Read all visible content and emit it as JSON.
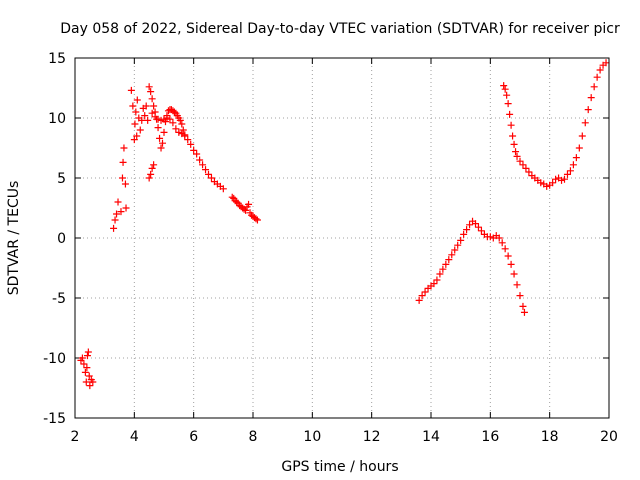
{
  "chart_data": {
    "type": "scatter",
    "title": "Day 058 of 2022, Sidereal Day-to-day VTEC variation (SDTVAR) for receiver picr",
    "xlabel": "GPS time / hours",
    "ylabel": "SDTVAR / TECUs",
    "xlim": [
      2,
      20
    ],
    "ylim": [
      -15,
      15
    ],
    "xticks": [
      2,
      4,
      6,
      8,
      10,
      12,
      14,
      16,
      18,
      20
    ],
    "yticks": [
      -15,
      -10,
      -5,
      0,
      5,
      10,
      15
    ],
    "xtick_labels": [
      "2",
      "4",
      "6",
      "8",
      "10",
      "12",
      "14",
      "16",
      "18",
      "20"
    ],
    "ytick_labels": [
      "-15",
      "-10",
      "-5",
      "0",
      "5",
      "10",
      "15"
    ],
    "grid": true,
    "marker": "+",
    "color": "#ff0000",
    "series": [
      {
        "name": "SDTVAR",
        "points": [
          [
            2.2,
            -10.2
          ],
          [
            2.25,
            -10.0
          ],
          [
            2.3,
            -10.5
          ],
          [
            2.35,
            -11.2
          ],
          [
            2.38,
            -12.0
          ],
          [
            2.4,
            -10.8
          ],
          [
            2.42,
            -9.8
          ],
          [
            2.45,
            -9.5
          ],
          [
            2.48,
            -11.5
          ],
          [
            2.5,
            -12.3
          ],
          [
            2.55,
            -11.8
          ],
          [
            2.6,
            -12.0
          ],
          [
            3.3,
            0.8
          ],
          [
            3.35,
            1.5
          ],
          [
            3.4,
            2.0
          ],
          [
            3.45,
            3.0
          ],
          [
            3.55,
            2.2
          ],
          [
            3.6,
            5.0
          ],
          [
            3.62,
            6.3
          ],
          [
            3.65,
            7.5
          ],
          [
            3.7,
            4.5
          ],
          [
            3.72,
            2.5
          ],
          [
            3.9,
            12.3
          ],
          [
            3.95,
            11.0
          ],
          [
            4.0,
            8.2
          ],
          [
            4.02,
            9.5
          ],
          [
            4.05,
            10.5
          ],
          [
            4.08,
            8.5
          ],
          [
            4.1,
            11.5
          ],
          [
            4.15,
            10.0
          ],
          [
            4.2,
            9.0
          ],
          [
            4.25,
            9.8
          ],
          [
            4.3,
            10.8
          ],
          [
            4.35,
            10.2
          ],
          [
            4.4,
            11.0
          ],
          [
            4.45,
            9.8
          ],
          [
            4.5,
            5.0
          ],
          [
            4.55,
            5.3
          ],
          [
            4.6,
            5.8
          ],
          [
            4.65,
            6.1
          ],
          [
            4.5,
            12.6
          ],
          [
            4.55,
            12.2
          ],
          [
            4.6,
            11.6
          ],
          [
            4.65,
            11.0
          ],
          [
            4.7,
            10.5
          ],
          [
            4.75,
            9.9
          ],
          [
            4.8,
            9.2
          ],
          [
            4.85,
            8.3
          ],
          [
            4.9,
            7.5
          ],
          [
            4.95,
            7.9
          ],
          [
            5.0,
            8.8
          ],
          [
            5.05,
            9.7
          ],
          [
            5.1,
            10.2
          ],
          [
            5.15,
            10.6
          ],
          [
            5.2,
            10.7
          ],
          [
            5.25,
            10.7
          ],
          [
            5.3,
            10.6
          ],
          [
            5.35,
            10.5
          ],
          [
            5.4,
            10.4
          ],
          [
            5.45,
            10.2
          ],
          [
            5.5,
            10.0
          ],
          [
            5.55,
            9.8
          ],
          [
            5.6,
            9.5
          ],
          [
            4.6,
            10.4
          ],
          [
            4.7,
            10.1
          ],
          [
            4.8,
            9.9
          ],
          [
            4.9,
            9.8
          ],
          [
            5.0,
            9.9
          ],
          [
            5.1,
            10.0
          ],
          [
            5.2,
            9.9
          ],
          [
            5.3,
            9.6
          ],
          [
            5.4,
            9.1
          ],
          [
            5.5,
            8.8
          ],
          [
            5.6,
            8.7
          ],
          [
            5.7,
            8.6
          ],
          [
            5.65,
            9.0
          ],
          [
            5.7,
            8.5
          ],
          [
            5.8,
            8.2
          ],
          [
            5.9,
            7.8
          ],
          [
            6.0,
            7.3
          ],
          [
            6.1,
            7.0
          ],
          [
            6.2,
            6.5
          ],
          [
            6.3,
            6.1
          ],
          [
            6.4,
            5.7
          ],
          [
            6.5,
            5.3
          ],
          [
            6.6,
            5.0
          ],
          [
            6.7,
            4.7
          ],
          [
            6.8,
            4.5
          ],
          [
            6.9,
            4.3
          ],
          [
            7.0,
            4.1
          ],
          [
            7.3,
            3.4
          ],
          [
            7.35,
            3.3
          ],
          [
            7.4,
            3.1
          ],
          [
            7.45,
            3.0
          ],
          [
            7.5,
            2.9
          ],
          [
            7.55,
            2.7
          ],
          [
            7.6,
            2.6
          ],
          [
            7.65,
            2.5
          ],
          [
            7.7,
            2.4
          ],
          [
            7.75,
            2.3
          ],
          [
            7.8,
            2.6
          ],
          [
            7.85,
            2.8
          ],
          [
            7.9,
            2.1
          ],
          [
            7.95,
            1.9
          ],
          [
            8.0,
            1.8
          ],
          [
            8.05,
            1.7
          ],
          [
            8.1,
            1.6
          ],
          [
            8.15,
            1.5
          ],
          [
            13.6,
            -5.2
          ],
          [
            13.7,
            -4.8
          ],
          [
            13.8,
            -4.5
          ],
          [
            13.9,
            -4.2
          ],
          [
            14.0,
            -4.0
          ],
          [
            14.1,
            -3.8
          ],
          [
            14.2,
            -3.5
          ],
          [
            14.3,
            -3.0
          ],
          [
            14.4,
            -2.6
          ],
          [
            14.5,
            -2.2
          ],
          [
            14.6,
            -1.8
          ],
          [
            14.7,
            -1.4
          ],
          [
            14.8,
            -1.0
          ],
          [
            14.9,
            -0.6
          ],
          [
            15.0,
            -0.2
          ],
          [
            15.1,
            0.3
          ],
          [
            15.2,
            0.7
          ],
          [
            15.3,
            1.1
          ],
          [
            15.4,
            1.4
          ],
          [
            15.5,
            1.2
          ],
          [
            15.6,
            0.9
          ],
          [
            15.7,
            0.6
          ],
          [
            15.8,
            0.3
          ],
          [
            15.9,
            0.1
          ],
          [
            16.0,
            0.1
          ],
          [
            16.1,
            0.0
          ],
          [
            16.2,
            0.2
          ],
          [
            16.3,
            0.0
          ],
          [
            16.4,
            -0.4
          ],
          [
            16.5,
            -0.9
          ],
          [
            16.6,
            -1.5
          ],
          [
            16.7,
            -2.2
          ],
          [
            16.8,
            -3.0
          ],
          [
            16.9,
            -3.9
          ],
          [
            17.0,
            -4.8
          ],
          [
            17.1,
            -5.7
          ],
          [
            17.15,
            -6.2
          ],
          [
            16.45,
            12.7
          ],
          [
            16.5,
            12.4
          ],
          [
            16.55,
            11.9
          ],
          [
            16.6,
            11.2
          ],
          [
            16.65,
            10.3
          ],
          [
            16.7,
            9.4
          ],
          [
            16.75,
            8.5
          ],
          [
            16.8,
            7.8
          ],
          [
            16.85,
            7.2
          ],
          [
            16.9,
            6.8
          ],
          [
            17.0,
            6.4
          ],
          [
            17.1,
            6.1
          ],
          [
            17.2,
            5.8
          ],
          [
            17.3,
            5.5
          ],
          [
            17.4,
            5.2
          ],
          [
            17.5,
            5.0
          ],
          [
            17.6,
            4.8
          ],
          [
            17.7,
            4.6
          ],
          [
            17.8,
            4.5
          ],
          [
            17.9,
            4.3
          ],
          [
            18.0,
            4.4
          ],
          [
            18.1,
            4.6
          ],
          [
            18.2,
            4.9
          ],
          [
            18.3,
            5.0
          ],
          [
            18.4,
            4.8
          ],
          [
            18.5,
            4.9
          ],
          [
            18.6,
            5.3
          ],
          [
            18.7,
            5.6
          ],
          [
            18.8,
            6.1
          ],
          [
            18.9,
            6.7
          ],
          [
            19.0,
            7.5
          ],
          [
            19.1,
            8.5
          ],
          [
            19.2,
            9.6
          ],
          [
            19.3,
            10.7
          ],
          [
            19.4,
            11.7
          ],
          [
            19.5,
            12.6
          ],
          [
            19.6,
            13.4
          ],
          [
            19.7,
            14.0
          ],
          [
            19.8,
            14.4
          ],
          [
            19.9,
            14.6
          ]
        ]
      }
    ]
  }
}
